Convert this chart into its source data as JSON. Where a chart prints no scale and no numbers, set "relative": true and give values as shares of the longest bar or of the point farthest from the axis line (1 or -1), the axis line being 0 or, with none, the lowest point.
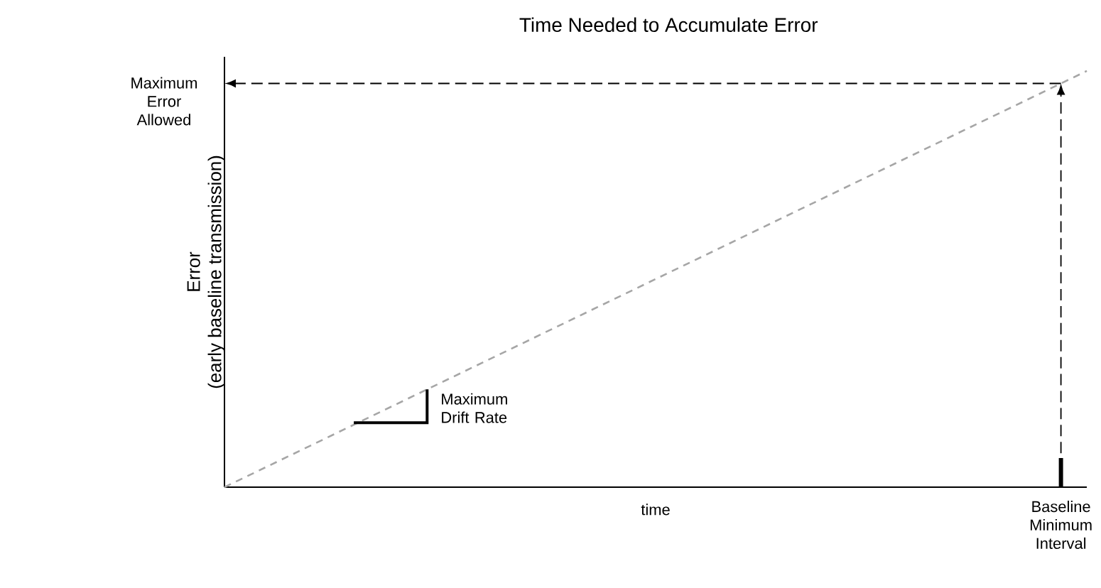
{
  "chart_data": {
    "type": "line",
    "title": "Time Needed to Accumulate Error",
    "xlabel": "time",
    "ylabel": "Error\n(early baseline transmission)",
    "relative": true,
    "line_style": "dashed",
    "categories": [
      null,
      null
    ],
    "series": [
      {
        "color": "#a6a6a6",
        "values": [
          0,
          1
        ]
      }
    ],
    "ref_lines": [
      {
        "axis": "y",
        "value": 0.97,
        "label": "Maximum Error Allowed",
        "line_style": "dashed",
        "color": "#000000"
      }
    ],
    "annotations": [
      "Baseline Minimum Interval",
      "Maximum Drift Rate"
    ]
  }
}
